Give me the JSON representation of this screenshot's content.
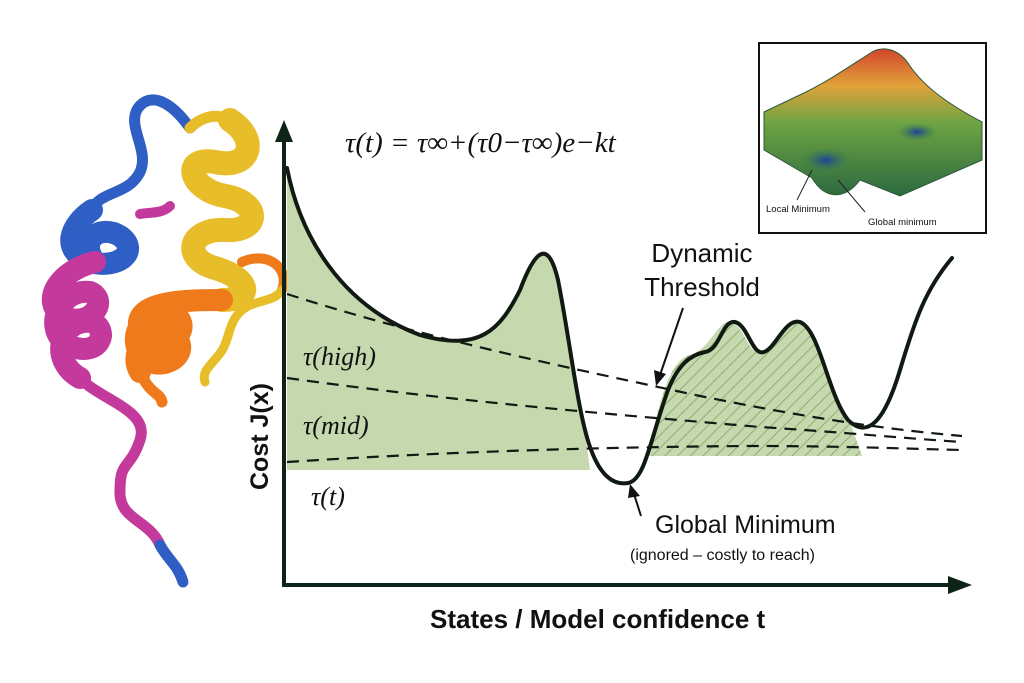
{
  "formula": "τ(t) = τ∞+(τ0−τ∞)e−kt",
  "inset": {
    "local_label": "Local Minimum",
    "global_label": "Global minimum"
  },
  "labels": {
    "dynamic_line1": "Dynamic",
    "dynamic_line2": "Threshold",
    "tau_high": "τ(high)",
    "tau_mid": "τ(mid)",
    "tau_t": "τ(t)",
    "global_min": "Global Minimum",
    "global_min_note": "(ignored – costly to reach)",
    "x_axis": "States / Model confidence t",
    "y_axis": "Cost J(x)"
  },
  "colors": {
    "shade": "#c5d8ae",
    "curve": "#111a12",
    "axis": "#0f2418",
    "helix_blue": "#2f5fc4",
    "helix_yellow": "#e7be2a",
    "helix_orange": "#ee7a1c",
    "helix_magenta": "#c43a9c"
  }
}
